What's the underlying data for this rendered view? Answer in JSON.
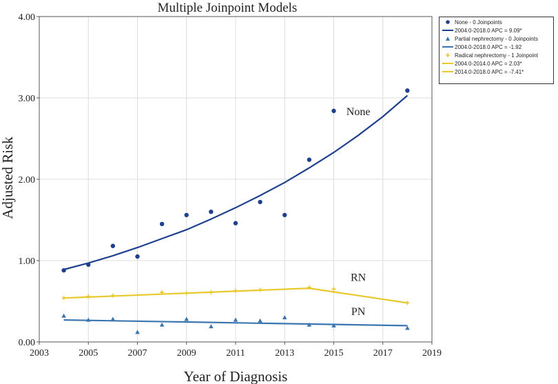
{
  "chart_data": {
    "type": "scatter",
    "title": "Multiple Joinpoint Models",
    "xlabel": "Year of Diagnosis",
    "ylabel": "Adjusted Risk",
    "xlim": [
      2003,
      2019
    ],
    "ylim": [
      0,
      4
    ],
    "x_ticks": [
      "2003",
      "2005",
      "2007",
      "2009",
      "2011",
      "2013",
      "2015",
      "2017",
      "2019"
    ],
    "y_ticks": [
      "0.00",
      "1.00",
      "2.00",
      "3.00",
      "4.00"
    ],
    "grid": true,
    "legend_position": "top-right-outside",
    "series": [
      {
        "name": "None - 0 Joinpoints",
        "marker": "circle",
        "color": "#1f3f8f",
        "label": "None",
        "x": [
          2004,
          2005,
          2006,
          2007,
          2008,
          2009,
          2010,
          2011,
          2012,
          2013,
          2014,
          2015,
          2018
        ],
        "y": [
          0.88,
          0.95,
          1.18,
          1.05,
          1.45,
          1.56,
          1.6,
          1.46,
          1.72,
          1.56,
          2.24,
          2.84,
          3.09
        ],
        "fit": {
          "label": "2004.0-2018.0 APC  = 9.09*",
          "x": [
            2004,
            2005,
            2006,
            2007,
            2008,
            2009,
            2010,
            2011,
            2012,
            2013,
            2014,
            2015,
            2016,
            2017,
            2018
          ],
          "y": [
            0.89,
            0.97,
            1.06,
            1.16,
            1.27,
            1.38,
            1.51,
            1.65,
            1.8,
            1.96,
            2.14,
            2.33,
            2.54,
            2.77,
            3.03
          ]
        }
      },
      {
        "name": "Partial nephrectomy - 0 Joinpoints",
        "marker": "triangle",
        "color": "#3a75b0",
        "label": "PN",
        "x": [
          2004,
          2005,
          2006,
          2007,
          2008,
          2009,
          2010,
          2011,
          2012,
          2013,
          2014,
          2015,
          2018
        ],
        "y": [
          0.32,
          0.27,
          0.28,
          0.12,
          0.21,
          0.28,
          0.19,
          0.27,
          0.26,
          0.3,
          0.21,
          0.2,
          0.17
        ],
        "fit": {
          "label": "2004.0-2018.0 APC  = -1.92",
          "x": [
            2004,
            2018
          ],
          "y": [
            0.27,
            0.2
          ]
        }
      },
      {
        "name": "Radical nephrectomy - 1 Joinpoint",
        "marker": "plus",
        "color": "#e8c82a",
        "label": "RN",
        "x": [
          2004,
          2005,
          2006,
          2008,
          2009,
          2010,
          2011,
          2012,
          2014,
          2015,
          2018
        ],
        "y": [
          0.54,
          0.56,
          0.57,
          0.61,
          0.6,
          0.61,
          0.63,
          0.64,
          0.67,
          0.65,
          0.48
        ],
        "fit": [
          {
            "label": "2004.0-2014.0 APC  =  2.03*",
            "x": [
              2004,
              2014
            ],
            "y": [
              0.54,
              0.66
            ]
          },
          {
            "label": "2014.0-2018.0 APC  = -7.41*",
            "x": [
              2014,
              2018
            ],
            "y": [
              0.66,
              0.48
            ]
          }
        ]
      }
    ],
    "annotations": [
      {
        "text": "None",
        "x": 2016.0,
        "y": 2.84
      },
      {
        "text": "RN",
        "x": 2016.0,
        "y": 0.8
      },
      {
        "text": "PN",
        "x": 2016.0,
        "y": 0.38
      }
    ]
  }
}
